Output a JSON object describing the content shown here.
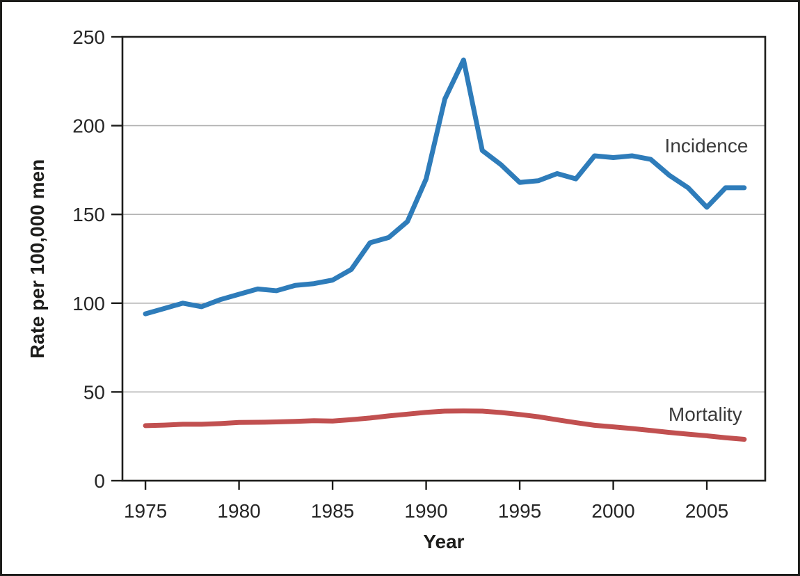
{
  "chart_data": {
    "type": "line",
    "title": "",
    "xlabel": "Year",
    "ylabel": "Rate per 100,000 men",
    "x": [
      1975,
      1976,
      1977,
      1978,
      1979,
      1980,
      1981,
      1982,
      1983,
      1984,
      1985,
      1986,
      1987,
      1988,
      1989,
      1990,
      1991,
      1992,
      1993,
      1994,
      1995,
      1996,
      1997,
      1998,
      1999,
      2000,
      2001,
      2002,
      2003,
      2004,
      2005,
      2006,
      2007
    ],
    "series": [
      {
        "name": "Incidence",
        "color": "#2e7cba",
        "label_year": 2002.75,
        "label_value": 185,
        "values": [
          94,
          97,
          100,
          98,
          102,
          105,
          108,
          107,
          110,
          111,
          113,
          119,
          134,
          137,
          146,
          170,
          215,
          237,
          186,
          178,
          168,
          169,
          173,
          170,
          183,
          182,
          183,
          181,
          172,
          165,
          154,
          165,
          165
        ]
      },
      {
        "name": "Mortality",
        "color": "#c15050",
        "label_year": 2002.95,
        "label_value": 33.7,
        "values": [
          31,
          31.3,
          31.8,
          31.8,
          32.2,
          32.8,
          32.9,
          33.1,
          33.4,
          33.8,
          33.6,
          34.4,
          35.3,
          36.5,
          37.5,
          38.5,
          39.2,
          39.3,
          39.2,
          38.4,
          37.3,
          36,
          34.3,
          32.7,
          31.2,
          30.3,
          29.4,
          28.3,
          27.2,
          26.2,
          25.3,
          24.2,
          23.3
        ]
      }
    ],
    "xticks": [
      1975,
      1980,
      1985,
      1990,
      1995,
      2000,
      2005
    ],
    "yticks": [
      0,
      50,
      100,
      150,
      200,
      250
    ],
    "xlim": [
      1973.77,
      2008.12
    ],
    "ylim": [
      0,
      250
    ],
    "grid": "horizontal",
    "legend_position": "inline-right"
  }
}
